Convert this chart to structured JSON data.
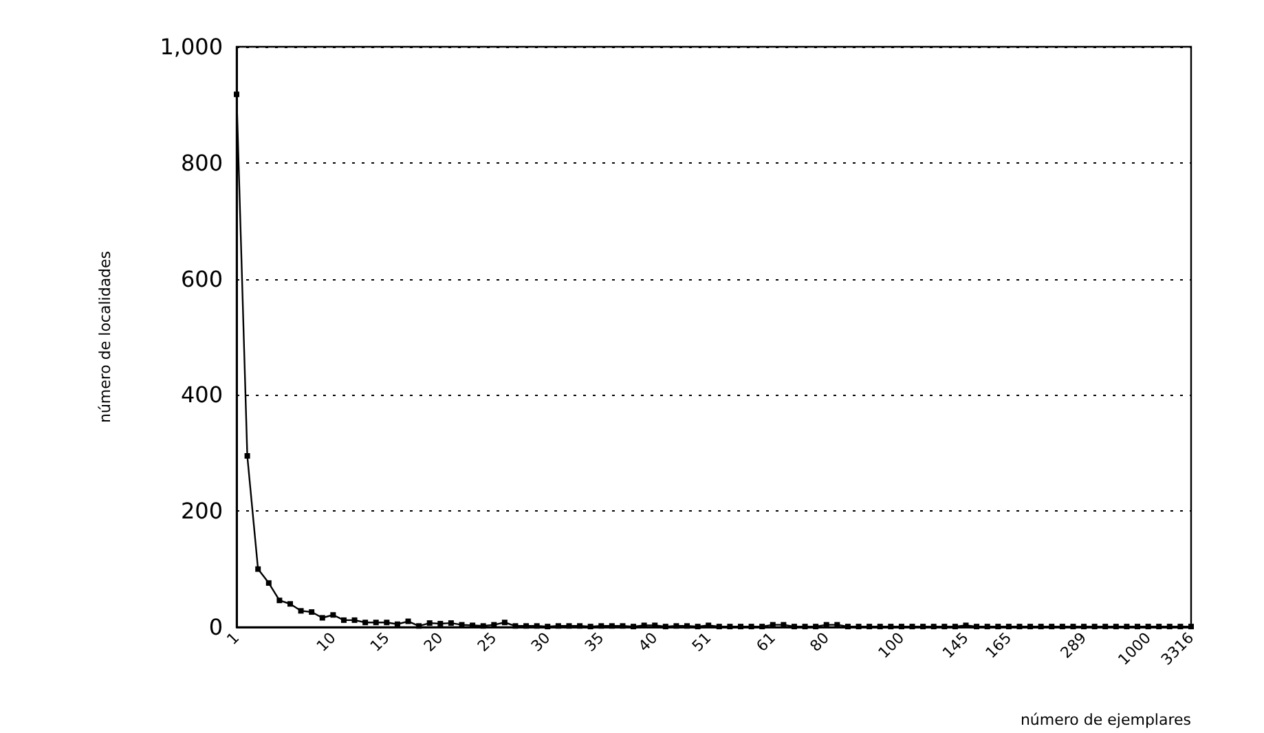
{
  "chart_data": {
    "type": "line",
    "xlabel": "número de ejemplares",
    "ylabel": "número de localidades",
    "categories": [
      "1",
      null,
      null,
      null,
      null,
      null,
      null,
      null,
      null,
      "10",
      null,
      null,
      null,
      null,
      "15",
      null,
      null,
      null,
      null,
      "20",
      null,
      null,
      null,
      null,
      "25",
      null,
      null,
      null,
      null,
      "30",
      null,
      null,
      null,
      null,
      "35",
      null,
      null,
      null,
      null,
      "40",
      null,
      null,
      null,
      null,
      "51",
      null,
      null,
      null,
      null,
      null,
      "61",
      null,
      null,
      null,
      null,
      "80",
      null,
      null,
      null,
      null,
      null,
      null,
      "100",
      null,
      null,
      null,
      null,
      null,
      "145",
      null,
      null,
      null,
      "165",
      null,
      null,
      null,
      null,
      null,
      null,
      "289",
      null,
      null,
      null,
      null,
      null,
      "1000",
      null,
      null,
      null,
      "3316"
    ],
    "series": [
      {
        "color": "#000000",
        "values": [
          918,
          295,
          100,
          76,
          46,
          40,
          28,
          26,
          16,
          21,
          12,
          12,
          8,
          8,
          8,
          5,
          10,
          2,
          7,
          6,
          7,
          4,
          3,
          2,
          4,
          8,
          2,
          2,
          2,
          1,
          2,
          2,
          2,
          1,
          2,
          2,
          2,
          1,
          3,
          3,
          1,
          2,
          2,
          1,
          3,
          1,
          1,
          1,
          1,
          1,
          4,
          4,
          1,
          1,
          1,
          4,
          4,
          1,
          1,
          1,
          1,
          1,
          1,
          1,
          1,
          1,
          1,
          1,
          3,
          1,
          1,
          1,
          1,
          1,
          1,
          1,
          1,
          1,
          1,
          1,
          1,
          1,
          1,
          1,
          1,
          1,
          1,
          1,
          1,
          1
        ]
      }
    ],
    "ylim": [
      0,
      1000
    ],
    "yticks": [
      0,
      200,
      400,
      600,
      800,
      {
        "value": 1000,
        "label": "1,000"
      }
    ],
    "grid": "y",
    "marker": "square",
    "line_style": "solid"
  }
}
